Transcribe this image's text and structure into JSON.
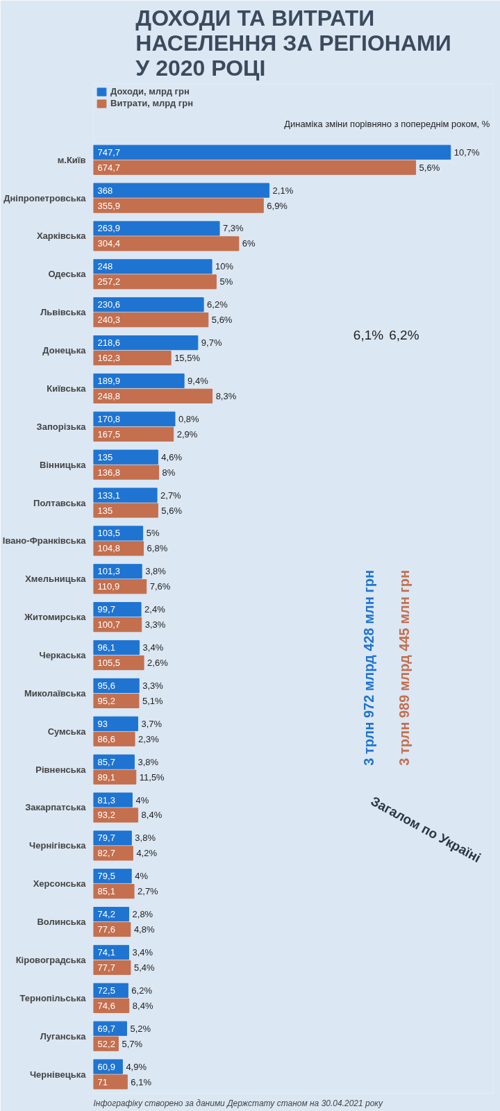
{
  "chart_data": {
    "type": "bar",
    "orientation": "horizontal",
    "title": "ДОХОДИ ТА ВИТРАТИ\nНАСЕЛЕННЯ ЗА РЕГІОНАМИ\nУ 2020 РОЦІ",
    "legend": "top left",
    "categories": [
      "м.Київ",
      "Дніпропетровська",
      "Харківська",
      "Одеська",
      "Львівська",
      "Донецька",
      "Київська",
      "Запорізька",
      "Вінницька",
      "Полтавська",
      "Івано-Франківська",
      "Хмельницька",
      "Житомирська",
      "Черкаська",
      "Миколаївська",
      "Сумська",
      "Рівненська",
      "Закарпатська",
      "Чернігівська",
      "Херсонська",
      "Волинська",
      "Кіровоградська",
      "Тернопільська",
      "Луганська",
      "Чернівецька"
    ],
    "series": [
      {
        "name": "Доходи, млрд грн",
        "color": "#1f74d1",
        "values": [
          747.7,
          368,
          263.9,
          248,
          230.6,
          218.6,
          189.9,
          170.8,
          135,
          133.1,
          103.5,
          101.3,
          99.7,
          96.1,
          95.6,
          93,
          85.7,
          81.3,
          79.7,
          79.5,
          74.2,
          74.1,
          72.5,
          69.7,
          60.9
        ],
        "value_labels": [
          "747,7",
          "368",
          "263,9",
          "248",
          "230,6",
          "218,6",
          "189,9",
          "170,8",
          "135",
          "133,1",
          "103,5",
          "101,3",
          "99,7",
          "96,1",
          "95,6",
          "93",
          "85,7",
          "81,3",
          "79,7",
          "79,5",
          "74,2",
          "74,1",
          "72,5",
          "69,7",
          "60,9"
        ]
      },
      {
        "name": "Витрати, млрд грн",
        "color": "#c46f4e",
        "values": [
          674.7,
          355.9,
          304.4,
          257.2,
          240.3,
          162.3,
          248.8,
          167.5,
          136.8,
          135,
          104.8,
          110.9,
          100.7,
          105.5,
          95.2,
          86.6,
          89.1,
          93.2,
          82.7,
          85.1,
          77.6,
          77.7,
          74.6,
          52.2,
          71
        ],
        "value_labels": [
          "674,7",
          "355,9",
          "304,4",
          "257,2",
          "240,3",
          "162,3",
          "248,8",
          "167,5",
          "136,8",
          "135",
          "104,8",
          "110,9",
          "100,7",
          "105,5",
          "95,2",
          "86,6",
          "89,1",
          "93,2",
          "82,7",
          "85,1",
          "77,6",
          "77,7",
          "74,6",
          "52,2",
          "71"
        ]
      }
    ],
    "annotations": [
      "Динаміка зміни порівняно з попереднім роком, %",
      "Загалом по Україні",
      "6,1%",
      "3 трлн 972 млрд 428 млн грн",
      "6,2%",
      "3 трлн 989 млрд 445 млн грн",
      "Інфографіку створено за даними Держстату станом на 30.04.2021 року",
      {
        "text": "10,7%",
        "x": 747.7,
        "y": "м.Київ"
      },
      {
        "text": "5,6%",
        "x": 674.7,
        "y": "м.Київ"
      },
      {
        "text": "2,1%",
        "x": 368,
        "y": "Дніпропетровська"
      },
      {
        "text": "6,9%",
        "x": 355.9,
        "y": "Дніпропетровська"
      },
      {
        "text": "7,3%",
        "x": 263.9,
        "y": "Харківська"
      },
      {
        "text": "6%",
        "x": 304.4,
        "y": "Харківська"
      },
      {
        "text": "10%",
        "x": 248,
        "y": "Одеська"
      },
      {
        "text": "5%",
        "x": 257.2,
        "y": "Одеська"
      },
      {
        "text": "6,2%",
        "x": 230.6,
        "y": "Львівська"
      },
      {
        "text": "5,6%",
        "x": 240.3,
        "y": "Львівська"
      },
      {
        "text": "9,7%",
        "x": 218.6,
        "y": "Донецька"
      },
      {
        "text": "15,5%",
        "x": 162.3,
        "y": "Донецька"
      },
      {
        "text": "9,4%",
        "x": 189.9,
        "y": "Київська"
      },
      {
        "text": "8,3%",
        "x": 248.8,
        "y": "Київська"
      },
      {
        "text": "0,8%",
        "x": 170.8,
        "y": "Запорізька"
      },
      {
        "text": "2,9%",
        "x": 167.5,
        "y": "Запорізька"
      },
      {
        "text": "4,6%",
        "x": 135,
        "y": "Вінницька"
      },
      {
        "text": "8%",
        "x": 136.8,
        "y": "Вінницька"
      },
      {
        "text": "2,7%",
        "x": 133.1,
        "y": "Полтавська"
      },
      {
        "text": "5,6%",
        "x": 135,
        "y": "Полтавська"
      },
      {
        "text": "5%",
        "x": 103.5,
        "y": "Івано-Франківська"
      },
      {
        "text": "6,8%",
        "x": 104.8,
        "y": "Івано-Франківська"
      },
      {
        "text": "3,8%",
        "x": 101.3,
        "y": "Хмельницька"
      },
      {
        "text": "7,6%",
        "x": 110.9,
        "y": "Хмельницька"
      },
      {
        "text": "2,4%",
        "x": 99.7,
        "y": "Житомирська"
      },
      {
        "text": "3,3%",
        "x": 100.7,
        "y": "Житомирська"
      },
      {
        "text": "3,4%",
        "x": 96.1,
        "y": "Черкаська"
      },
      {
        "text": "2,6%",
        "x": 105.5,
        "y": "Черкаська"
      },
      {
        "text": "3,3%",
        "x": 95.6,
        "y": "Миколаївська"
      },
      {
        "text": "5,1%",
        "x": 95.2,
        "y": "Миколаївська"
      },
      {
        "text": "3,7%",
        "x": 93,
        "y": "Сумська"
      },
      {
        "text": "2,3%",
        "x": 86.6,
        "y": "Сумська"
      },
      {
        "text": "3,8%",
        "x": 85.7,
        "y": "Рівненська"
      },
      {
        "text": "11,5%",
        "x": 89.1,
        "y": "Рівненська"
      },
      {
        "text": "4%",
        "x": 81.3,
        "y": "Закарпатська"
      },
      {
        "text": "8,4%",
        "x": 93.2,
        "y": "Закарпатська"
      },
      {
        "text": "3,8%",
        "x": 79.7,
        "y": "Чернігівська"
      },
      {
        "text": "4,2%",
        "x": 82.7,
        "y": "Чернігівська"
      },
      {
        "text": "4%",
        "x": 79.5,
        "y": "Херсонська"
      },
      {
        "text": "2,7%",
        "x": 85.1,
        "y": "Херсонська"
      },
      {
        "text": "2,8%",
        "x": 74.2,
        "y": "Волинська"
      },
      {
        "text": "4,8%",
        "x": 77.6,
        "y": "Волинська"
      },
      {
        "text": "3,4%",
        "x": 74.1,
        "y": "Кіровоградська"
      },
      {
        "text": "5,4%",
        "x": 77.7,
        "y": "Кіровоградська"
      },
      {
        "text": "6,2%",
        "x": 72.5,
        "y": "Тернопільська"
      },
      {
        "text": "8,4%",
        "x": 74.6,
        "y": "Тернопільська"
      },
      {
        "text": "5,2%",
        "x": 69.7,
        "y": "Луганська"
      },
      {
        "text": "5,7%",
        "x": 52.2,
        "y": "Луганська"
      },
      {
        "text": "4,9%",
        "x": 60.9,
        "y": "Чернівецька"
      },
      {
        "text": "6,1%",
        "x": 71,
        "y": "Чернівецька"
      }
    ]
  }
}
